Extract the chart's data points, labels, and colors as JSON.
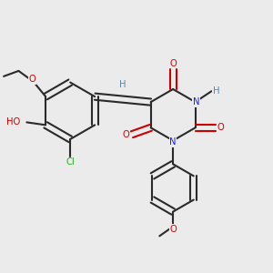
{
  "background_color": "#ebebeb",
  "fig_size": [
    3.0,
    3.0
  ],
  "dpi": 100,
  "bond_lw": 1.5,
  "dbo": 0.012,
  "colors": {
    "O": "#cc0000",
    "N": "#1a1aff",
    "Cl": "#22aa22",
    "H": "#5588aa",
    "C": "#2a2a2a"
  },
  "font_size": 7.2
}
